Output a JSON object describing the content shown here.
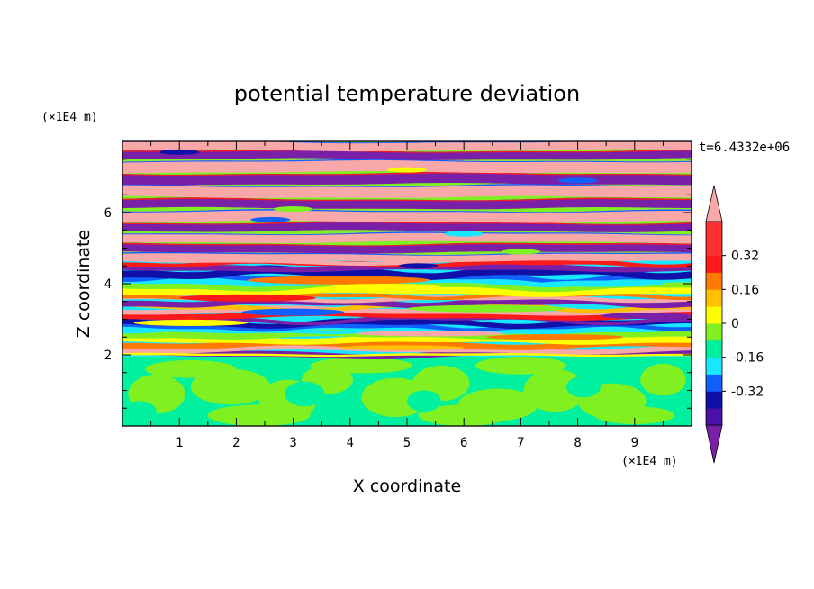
{
  "chart_data": {
    "type": "heatmap",
    "title": "potential temperature deviation",
    "xlabel": "X coordinate",
    "ylabel": "Z coordinate",
    "x_unit": "(×1E4 m)",
    "y_unit": "(×1E4 m)",
    "time_label": "t=6.4332e+06",
    "xlim": [
      0,
      10
    ],
    "ylim": [
      0,
      8
    ],
    "x_ticks": [
      "1",
      "2",
      "3",
      "4",
      "5",
      "6",
      "7",
      "8",
      "9"
    ],
    "y_ticks": [
      "2",
      "4",
      "6"
    ],
    "colorbar": {
      "colors": [
        "#7a1fa8",
        "#4a10a8",
        "#1010a8",
        "#1060ff",
        "#18e8ff",
        "#00f0a0",
        "#80f020",
        "#ffff00",
        "#ffc000",
        "#ff7a00",
        "#ff1a1a",
        "#ff3030",
        "#f8a8a8"
      ],
      "tick_labels": [
        "0.32",
        "0.16",
        "0",
        "-0.16",
        "-0.32"
      ],
      "tick_values": [
        0.32,
        0.16,
        0,
        -0.16,
        -0.32
      ],
      "min": -0.48,
      "max": 0.48,
      "step": 0.08,
      "extend": "both"
    }
  }
}
